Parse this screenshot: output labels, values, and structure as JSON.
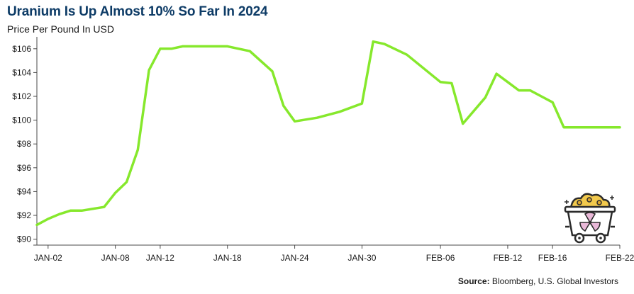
{
  "header": {
    "title": "Uranium Is Up Almost 10% So Far In 2024",
    "subtitle": "Price Per Pound In USD"
  },
  "footer": {
    "source_label": "Source:",
    "source_text": " Bloomberg, U.S. Global Investors"
  },
  "colors": {
    "line": "#86e82c",
    "axis": "#4a4a4a",
    "title": "#0d3b66"
  },
  "icons": {
    "badge": "mine-cart-uranium-icon"
  },
  "chart_data": {
    "type": "line",
    "title": "Uranium Is Up Almost 10% So Far In 2024",
    "subtitle": "Price Per Pound In USD",
    "xlabel": "",
    "ylabel": "",
    "ylim": [
      89.5,
      107
    ],
    "y_ticks": [
      90,
      92,
      94,
      96,
      98,
      100,
      102,
      104,
      106
    ],
    "y_tick_labels": [
      "$90",
      "$92",
      "$94",
      "$96",
      "$98",
      "$100",
      "$102",
      "$104",
      "$106"
    ],
    "x_tick_labels": [
      "JAN-02",
      "JAN-08",
      "JAN-12",
      "JAN-18",
      "JAN-24",
      "JAN-30",
      "FEB-06",
      "FEB-12",
      "FEB-16",
      "FEB-22"
    ],
    "x_tick_dates": [
      "2024-01-02",
      "2024-01-08",
      "2024-01-12",
      "2024-01-18",
      "2024-01-24",
      "2024-01-30",
      "2024-02-06",
      "2024-02-12",
      "2024-02-16",
      "2024-02-22"
    ],
    "grid": false,
    "legend": "none",
    "series": [
      {
        "x": [
          "2024-01-01",
          "2024-01-02",
          "2024-01-03",
          "2024-01-04",
          "2024-01-05",
          "2024-01-07",
          "2024-01-08",
          "2024-01-09",
          "2024-01-10",
          "2024-01-11",
          "2024-01-12",
          "2024-01-13",
          "2024-01-14",
          "2024-01-16",
          "2024-01-18",
          "2024-01-20",
          "2024-01-22",
          "2024-01-23",
          "2024-01-24",
          "2024-01-26",
          "2024-01-28",
          "2024-01-30",
          "2024-01-31",
          "2024-02-01",
          "2024-02-03",
          "2024-02-06",
          "2024-02-07",
          "2024-02-08",
          "2024-02-10",
          "2024-02-11",
          "2024-02-12",
          "2024-02-13",
          "2024-02-14",
          "2024-02-15",
          "2024-02-16",
          "2024-02-17",
          "2024-02-19",
          "2024-02-20",
          "2024-02-21",
          "2024-02-22"
        ],
        "y": [
          91.2,
          91.7,
          92.1,
          92.4,
          92.4,
          92.7,
          93.9,
          94.8,
          97.5,
          104.2,
          106.0,
          106.0,
          106.2,
          106.2,
          106.2,
          105.8,
          104.1,
          101.2,
          99.9,
          100.2,
          100.7,
          101.4,
          106.6,
          106.4,
          105.5,
          103.2,
          103.1,
          99.7,
          101.9,
          103.9,
          103.2,
          102.5,
          102.5,
          102.0,
          101.5,
          99.4,
          99.4,
          99.4,
          99.4,
          99.4
        ]
      }
    ]
  }
}
